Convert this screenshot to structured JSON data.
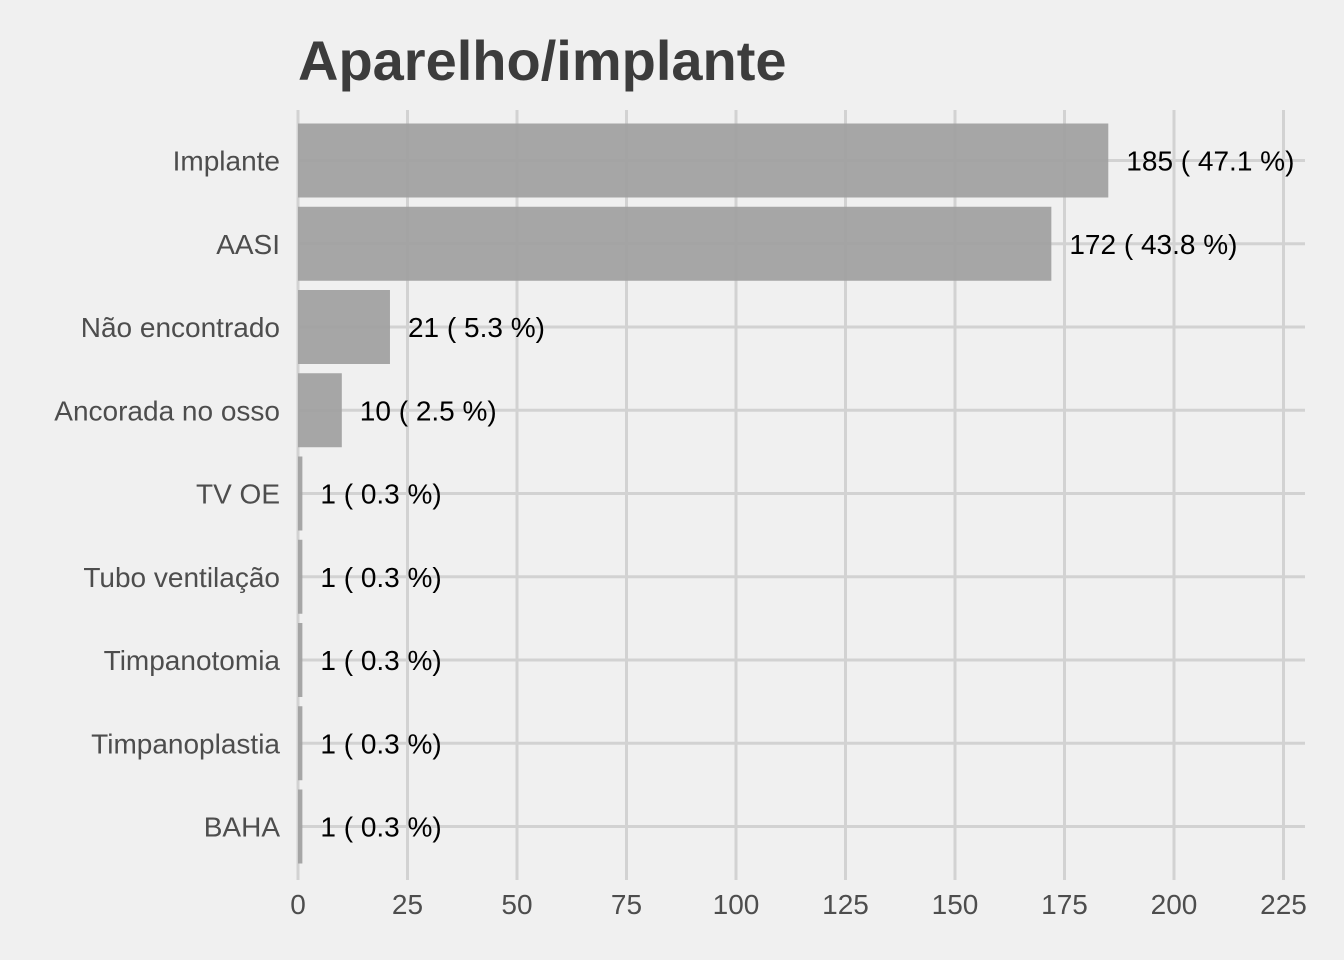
{
  "chart_data": {
    "type": "bar",
    "orientation": "horizontal",
    "title": "Aparelho/implante",
    "xlabel": "",
    "ylabel": "",
    "categories": [
      "Implante",
      "AASI",
      "Não encontrado",
      "Ancorada no osso",
      "TV OE",
      "Tubo ventilação",
      "Timpanotomia",
      "Timpanoplastia",
      "BAHA"
    ],
    "values": [
      185,
      172,
      21,
      10,
      1,
      1,
      1,
      1,
      1
    ],
    "data_labels": [
      "185 ( 47.1 %)",
      "172 ( 43.8 %)",
      "21 ( 5.3 %)",
      "10 ( 2.5 %)",
      "1 ( 0.3 %)",
      "1 ( 0.3 %)",
      "1 ( 0.3 %)",
      "1 ( 0.3 %)",
      "1 ( 0.3 %)"
    ],
    "xlim": [
      0,
      230
    ],
    "xticks": [
      0,
      25,
      50,
      75,
      100,
      125,
      150,
      175,
      200,
      225
    ],
    "xtick_labels": [
      "0",
      "25",
      "50",
      "75",
      "100",
      "125",
      "150",
      "175",
      "200",
      "225"
    ],
    "grid": true,
    "legend": "none",
    "bar_color": "#a0a0a0",
    "background_color": "#f0f0f0",
    "grid_color": "#d2d2d2"
  }
}
